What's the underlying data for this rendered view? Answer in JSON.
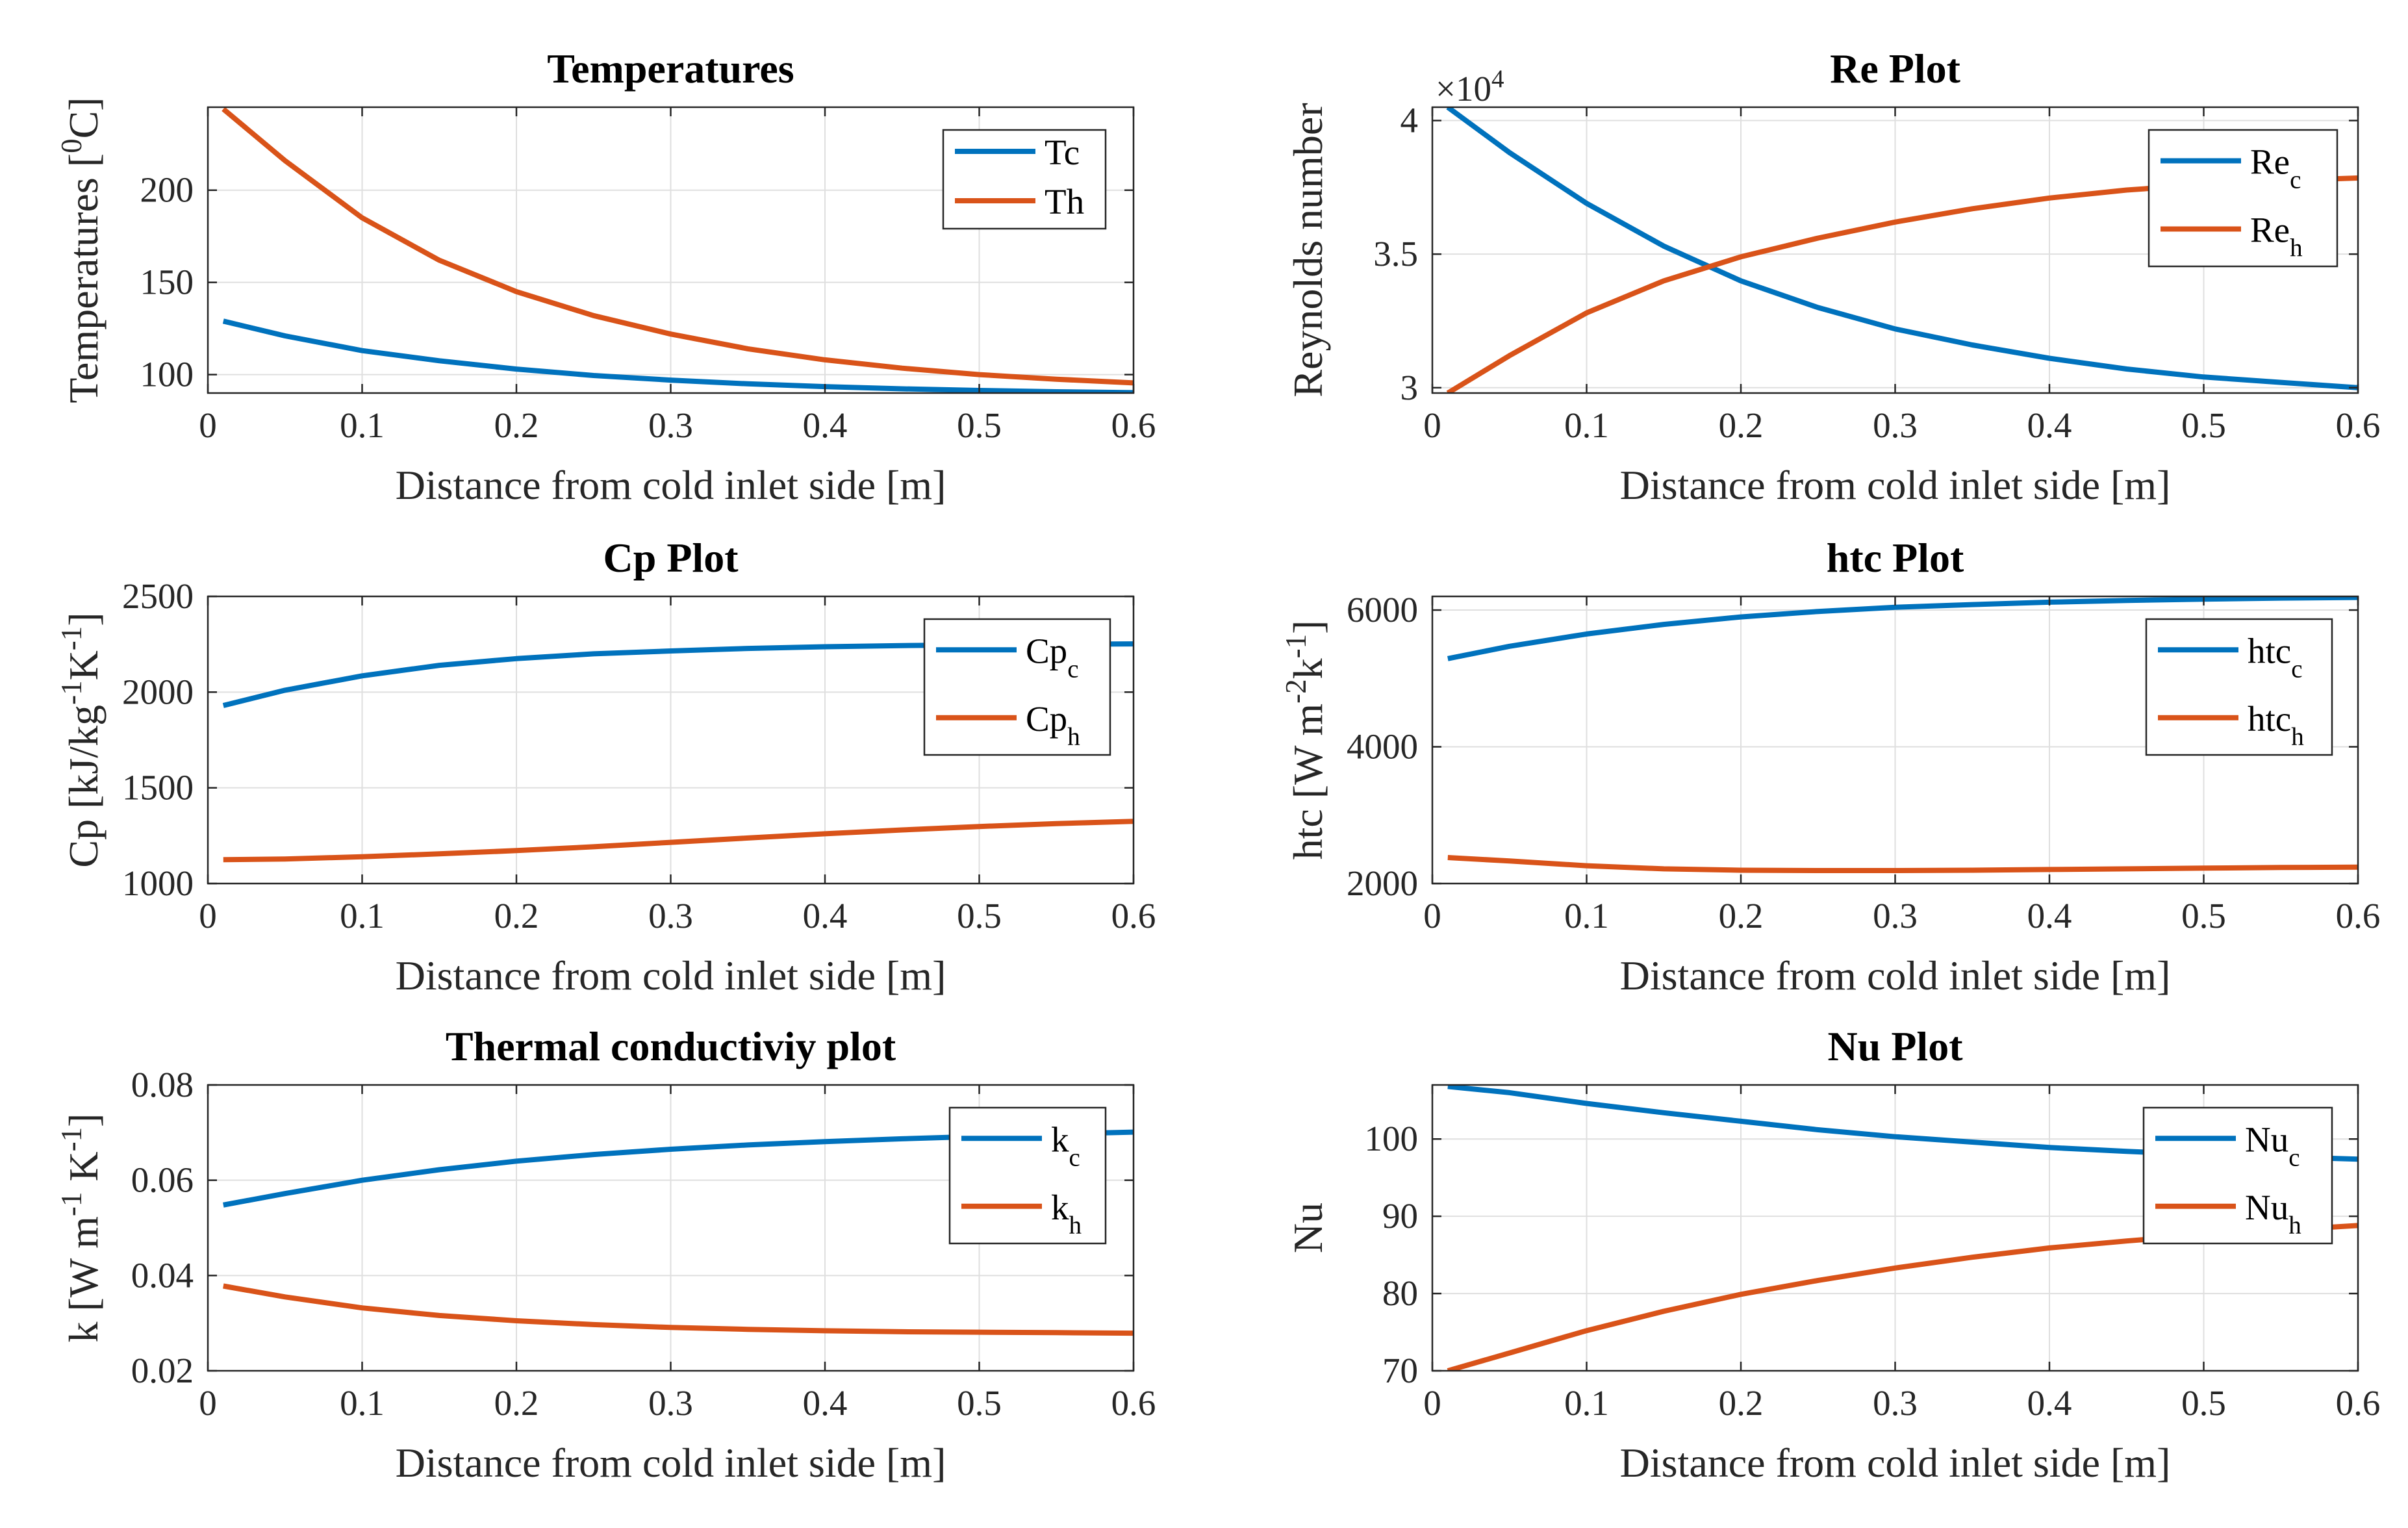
{
  "colors": {
    "series1": "#0072BD",
    "series2": "#D95319",
    "grid": "#dfdfdf",
    "axis": "#262626"
  },
  "chart_data": [
    {
      "type": "line",
      "title": "Temperatures",
      "xlabel": "Distance from cold inlet side [m]",
      "ylabel": "Temperatures [0C]",
      "ylabel_parts": [
        {
          "t": "Temperatures ["
        },
        {
          "t": "0",
          "sup": true
        },
        {
          "t": "C]"
        }
      ],
      "xlim": [
        0,
        0.6
      ],
      "ylim": [
        90,
        245
      ],
      "xticks": [
        0,
        0.1,
        0.2,
        0.3,
        0.4,
        0.5,
        0.6
      ],
      "xtick_labels": [
        "0",
        "0.1",
        "0.2",
        "0.3",
        "0.4",
        "0.5",
        "0.6"
      ],
      "yticks": [
        100,
        150,
        200
      ],
      "ytick_labels": [
        "100",
        "150",
        "200"
      ],
      "legend_position": "top-right",
      "series": [
        {
          "name": "Tc",
          "name_parts": [
            {
              "t": "Tc"
            }
          ],
          "x": [
            0.01,
            0.05,
            0.1,
            0.15,
            0.2,
            0.25,
            0.3,
            0.35,
            0.4,
            0.45,
            0.5,
            0.55,
            0.6
          ],
          "y": [
            129,
            121,
            113,
            107.5,
            103,
            99.5,
            97,
            95,
            93.5,
            92.3,
            91.4,
            90.7,
            90.2
          ]
        },
        {
          "name": "Th",
          "name_parts": [
            {
              "t": "Th"
            }
          ],
          "x": [
            0.01,
            0.05,
            0.1,
            0.15,
            0.2,
            0.25,
            0.3,
            0.35,
            0.4,
            0.45,
            0.5,
            0.55,
            0.6
          ],
          "y": [
            244,
            216,
            185,
            162,
            145,
            132,
            122,
            114,
            108,
            103.5,
            100,
            97.5,
            95.5
          ]
        }
      ]
    },
    {
      "type": "line",
      "title": "Re Plot",
      "xlabel": "Distance from cold inlet side [m]",
      "ylabel": "Reynolds number",
      "ylabel_parts": [
        {
          "t": "Reynolds number"
        }
      ],
      "y_exponent_base": "×10",
      "y_exponent": "4",
      "xlim": [
        0,
        0.6
      ],
      "ylim": [
        2.98,
        4.05
      ],
      "xticks": [
        0,
        0.1,
        0.2,
        0.3,
        0.4,
        0.5,
        0.6
      ],
      "xtick_labels": [
        "0",
        "0.1",
        "0.2",
        "0.3",
        "0.4",
        "0.5",
        "0.6"
      ],
      "yticks": [
        3,
        3.5,
        4
      ],
      "ytick_labels": [
        "3",
        "3.5",
        "4"
      ],
      "legend_position": "top-right",
      "series": [
        {
          "name": "Rec",
          "name_parts": [
            {
              "t": "Re"
            },
            {
              "t": "c",
              "sub": true
            }
          ],
          "x": [
            0.01,
            0.05,
            0.1,
            0.15,
            0.2,
            0.25,
            0.3,
            0.35,
            0.4,
            0.45,
            0.5,
            0.55,
            0.6
          ],
          "y": [
            4.05,
            3.88,
            3.69,
            3.53,
            3.4,
            3.3,
            3.22,
            3.16,
            3.11,
            3.07,
            3.04,
            3.02,
            3.0
          ]
        },
        {
          "name": "Reh",
          "name_parts": [
            {
              "t": "Re"
            },
            {
              "t": "h",
              "sub": true
            }
          ],
          "x": [
            0.01,
            0.05,
            0.1,
            0.15,
            0.2,
            0.25,
            0.3,
            0.35,
            0.4,
            0.45,
            0.5,
            0.55,
            0.6
          ],
          "y": [
            2.98,
            3.12,
            3.28,
            3.4,
            3.49,
            3.56,
            3.62,
            3.67,
            3.71,
            3.74,
            3.76,
            3.775,
            3.785
          ]
        }
      ]
    },
    {
      "type": "line",
      "title": "Cp Plot",
      "xlabel": "Distance from cold inlet side [m]",
      "ylabel": "Cp [kJ/kg-1K-1]",
      "ylabel_parts": [
        {
          "t": "Cp [kJ/kg"
        },
        {
          "t": "-1",
          "sup": true
        },
        {
          "t": "K"
        },
        {
          "t": "-1",
          "sup": true
        },
        {
          "t": "]"
        }
      ],
      "xlim": [
        0,
        0.6
      ],
      "ylim": [
        1000,
        2500
      ],
      "xticks": [
        0,
        0.1,
        0.2,
        0.3,
        0.4,
        0.5,
        0.6
      ],
      "xtick_labels": [
        "0",
        "0.1",
        "0.2",
        "0.3",
        "0.4",
        "0.5",
        "0.6"
      ],
      "yticks": [
        1000,
        1500,
        2000,
        2500
      ],
      "ytick_labels": [
        "1000",
        "1500",
        "2000",
        "2500"
      ],
      "legend_position": "top-right",
      "series": [
        {
          "name": "Cpc",
          "name_parts": [
            {
              "t": "Cp"
            },
            {
              "t": "c",
              "sub": true
            }
          ],
          "x": [
            0.01,
            0.05,
            0.1,
            0.15,
            0.2,
            0.25,
            0.3,
            0.35,
            0.4,
            0.45,
            0.5,
            0.55,
            0.6
          ],
          "y": [
            1930,
            2010,
            2085,
            2140,
            2175,
            2200,
            2215,
            2228,
            2237,
            2243,
            2247,
            2250,
            2252
          ]
        },
        {
          "name": "Cph",
          "name_parts": [
            {
              "t": "Cp"
            },
            {
              "t": "h",
              "sub": true
            }
          ],
          "x": [
            0.01,
            0.05,
            0.1,
            0.15,
            0.2,
            0.25,
            0.3,
            0.35,
            0.4,
            0.45,
            0.5,
            0.55,
            0.6
          ],
          "y": [
            1125,
            1128,
            1140,
            1155,
            1172,
            1192,
            1215,
            1238,
            1260,
            1280,
            1298,
            1313,
            1325
          ]
        }
      ]
    },
    {
      "type": "line",
      "title": "htc Plot",
      "xlabel": "Distance from cold inlet side [m]",
      "ylabel": "htc [W m-2k-1]",
      "ylabel_parts": [
        {
          "t": "htc [W m"
        },
        {
          "t": "-2",
          "sup": true
        },
        {
          "t": "k"
        },
        {
          "t": "-1",
          "sup": true
        },
        {
          "t": "]"
        }
      ],
      "xlim": [
        0,
        0.6
      ],
      "ylim": [
        2000,
        6200
      ],
      "xticks": [
        0,
        0.1,
        0.2,
        0.3,
        0.4,
        0.5,
        0.6
      ],
      "xtick_labels": [
        "0",
        "0.1",
        "0.2",
        "0.3",
        "0.4",
        "0.5",
        "0.6"
      ],
      "yticks": [
        2000,
        4000,
        6000
      ],
      "ytick_labels": [
        "2000",
        "4000",
        "6000"
      ],
      "legend_position": "top-right",
      "series": [
        {
          "name": "htcc",
          "name_parts": [
            {
              "t": "htc"
            },
            {
              "t": "c",
              "sub": true
            }
          ],
          "x": [
            0.01,
            0.05,
            0.1,
            0.15,
            0.2,
            0.25,
            0.3,
            0.35,
            0.4,
            0.45,
            0.5,
            0.55,
            0.6
          ],
          "y": [
            5290,
            5470,
            5650,
            5790,
            5900,
            5980,
            6040,
            6080,
            6115,
            6140,
            6160,
            6175,
            6185
          ]
        },
        {
          "name": "htch",
          "name_parts": [
            {
              "t": "htc"
            },
            {
              "t": "h",
              "sub": true
            }
          ],
          "x": [
            0.01,
            0.05,
            0.1,
            0.15,
            0.2,
            0.25,
            0.3,
            0.35,
            0.4,
            0.45,
            0.5,
            0.55,
            0.6
          ],
          "y": [
            2380,
            2330,
            2260,
            2215,
            2195,
            2190,
            2190,
            2195,
            2205,
            2215,
            2225,
            2235,
            2240
          ]
        }
      ]
    },
    {
      "type": "line",
      "title": "Thermal conductiviy plot",
      "xlabel": "Distance from cold inlet side [m]",
      "ylabel": "k [W m-1 K-1]",
      "ylabel_parts": [
        {
          "t": "k [W m"
        },
        {
          "t": "-1",
          "sup": true
        },
        {
          "t": " K"
        },
        {
          "t": "-1",
          "sup": true
        },
        {
          "t": "]"
        }
      ],
      "xlim": [
        0,
        0.6
      ],
      "ylim": [
        0.02,
        0.08
      ],
      "xticks": [
        0,
        0.1,
        0.2,
        0.3,
        0.4,
        0.5,
        0.6
      ],
      "xtick_labels": [
        "0",
        "0.1",
        "0.2",
        "0.3",
        "0.4",
        "0.5",
        "0.6"
      ],
      "yticks": [
        0.02,
        0.04,
        0.06,
        0.08
      ],
      "ytick_labels": [
        "0.02",
        "0.04",
        "0.06",
        "0.08"
      ],
      "legend_position": "top-right",
      "series": [
        {
          "name": "kc",
          "name_parts": [
            {
              "t": "k"
            },
            {
              "t": "c",
              "sub": true
            }
          ],
          "x": [
            0.01,
            0.05,
            0.1,
            0.15,
            0.2,
            0.25,
            0.3,
            0.35,
            0.4,
            0.45,
            0.5,
            0.55,
            0.6
          ],
          "y": [
            0.0548,
            0.0572,
            0.06,
            0.0622,
            0.064,
            0.0654,
            0.0665,
            0.0674,
            0.0681,
            0.0687,
            0.0692,
            0.0697,
            0.0701
          ]
        },
        {
          "name": "kh",
          "name_parts": [
            {
              "t": "k"
            },
            {
              "t": "h",
              "sub": true
            }
          ],
          "x": [
            0.01,
            0.05,
            0.1,
            0.15,
            0.2,
            0.25,
            0.3,
            0.35,
            0.4,
            0.45,
            0.5,
            0.55,
            0.6
          ],
          "y": [
            0.0378,
            0.0355,
            0.0332,
            0.0316,
            0.0305,
            0.0297,
            0.0291,
            0.0287,
            0.0284,
            0.0282,
            0.0281,
            0.028,
            0.0279
          ]
        }
      ]
    },
    {
      "type": "line",
      "title": "Nu Plot",
      "xlabel": "Distance from cold inlet side [m]",
      "ylabel": "Nu",
      "ylabel_parts": [
        {
          "t": "Nu"
        }
      ],
      "xlim": [
        0,
        0.6
      ],
      "ylim": [
        70,
        107
      ],
      "xticks": [
        0,
        0.1,
        0.2,
        0.3,
        0.4,
        0.5,
        0.6
      ],
      "xtick_labels": [
        "0",
        "0.1",
        "0.2",
        "0.3",
        "0.4",
        "0.5",
        "0.6"
      ],
      "yticks": [
        70,
        80,
        90,
        100
      ],
      "ytick_labels": [
        "70",
        "80",
        "90",
        "100"
      ],
      "legend_position": "top-right",
      "series": [
        {
          "name": "Nuc",
          "name_parts": [
            {
              "t": "Nu"
            },
            {
              "t": "c",
              "sub": true
            }
          ],
          "x": [
            0.01,
            0.05,
            0.1,
            0.15,
            0.2,
            0.25,
            0.3,
            0.35,
            0.4,
            0.45,
            0.5,
            0.55,
            0.6
          ],
          "y": [
            106.8,
            106.0,
            104.6,
            103.4,
            102.3,
            101.2,
            100.3,
            99.6,
            98.9,
            98.4,
            98.0,
            97.7,
            97.4
          ]
        },
        {
          "name": "Nuh",
          "name_parts": [
            {
              "t": "Nu"
            },
            {
              "t": "h",
              "sub": true
            }
          ],
          "x": [
            0.01,
            0.05,
            0.1,
            0.15,
            0.2,
            0.25,
            0.3,
            0.35,
            0.4,
            0.45,
            0.5,
            0.55,
            0.6
          ],
          "y": [
            70.0,
            72.3,
            75.2,
            77.7,
            79.9,
            81.7,
            83.3,
            84.7,
            85.9,
            86.8,
            87.6,
            88.2,
            88.8
          ]
        }
      ]
    }
  ]
}
